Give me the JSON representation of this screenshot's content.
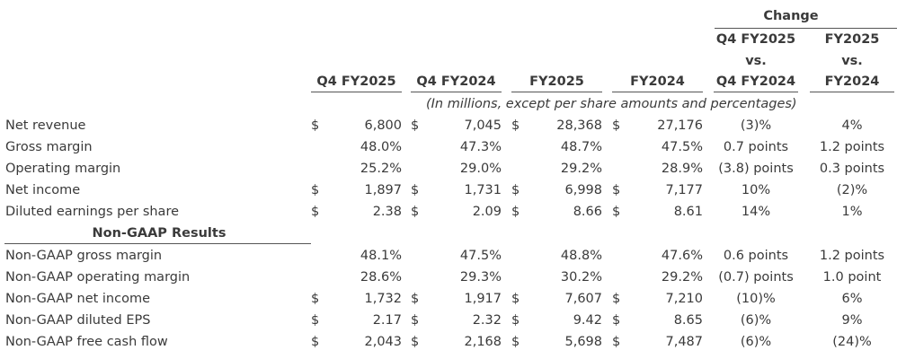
{
  "table": {
    "change_header": "Change",
    "columns": [
      "Q4 FY2025",
      "Q4 FY2024",
      "FY2025",
      "FY2024"
    ],
    "change_columns": [
      [
        "Q4 FY2025",
        "vs.",
        "Q4 FY2024"
      ],
      [
        "FY2025",
        "vs.",
        "FY2024"
      ]
    ],
    "note": "(In millions, except per share amounts and percentages)",
    "rows": [
      {
        "label": "Net revenue",
        "currency": "$",
        "values": [
          "6,800",
          "7,045",
          "28,368",
          "27,176"
        ],
        "changes": [
          "(3)%",
          "4%"
        ]
      },
      {
        "label": "Gross margin",
        "values": [
          "48.0%",
          "47.3%",
          "48.7%",
          "47.5%"
        ],
        "changes": [
          "0.7 points",
          "1.2 points"
        ]
      },
      {
        "label": "Operating margin",
        "values": [
          "25.2%",
          "29.0%",
          "29.2%",
          "28.9%"
        ],
        "changes": [
          "(3.8) points",
          "0.3 points"
        ]
      },
      {
        "label": "Net income",
        "currency": "$",
        "values": [
          "1,897",
          "1,731",
          "6,998",
          "7,177"
        ],
        "changes": [
          "10%",
          "(2)%"
        ]
      },
      {
        "label": "Diluted earnings per share",
        "currency": "$",
        "values": [
          "2.38",
          "2.09",
          "8.66",
          "8.61"
        ],
        "changes": [
          "14%",
          "1%"
        ]
      }
    ],
    "section": "Non-GAAP Results",
    "non_gaap_rows": [
      {
        "label": "Non-GAAP gross margin",
        "values": [
          "48.1%",
          "47.5%",
          "48.8%",
          "47.6%"
        ],
        "changes": [
          "0.6 points",
          "1.2 points"
        ]
      },
      {
        "label": "Non-GAAP operating margin",
        "values": [
          "28.6%",
          "29.3%",
          "30.2%",
          "29.2%"
        ],
        "changes": [
          "(0.7) points",
          "1.0 point"
        ]
      },
      {
        "label": "Non-GAAP net income",
        "currency": "$",
        "values": [
          "1,732",
          "1,917",
          "7,607",
          "7,210"
        ],
        "changes": [
          "(10)%",
          "6%"
        ]
      },
      {
        "label": "Non-GAAP diluted EPS",
        "currency": "$",
        "values": [
          "2.17",
          "2.32",
          "9.42",
          "8.65"
        ],
        "changes": [
          "(6)%",
          "9%"
        ]
      },
      {
        "label": "Non-GAAP free cash flow",
        "currency": "$",
        "values": [
          "2,043",
          "2,168",
          "5,698",
          "7,487"
        ],
        "changes": [
          "(6)%",
          "(24)%"
        ]
      }
    ]
  }
}
